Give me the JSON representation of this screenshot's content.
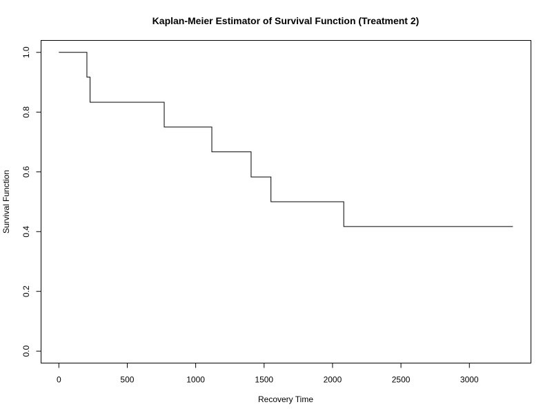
{
  "chart_data": {
    "type": "line",
    "title": "Kaplan-Meier Estimator of Survival Function (Treatment 2)",
    "xlabel": "Recovery Time",
    "ylabel": "Survival Function",
    "xlim": [
      -130,
      3450
    ],
    "ylim": [
      -0.04,
      1.04
    ],
    "x_axis_range": [
      0,
      3000
    ],
    "y_axis_range": [
      0.0,
      1.0
    ],
    "x_ticks": [
      0,
      500,
      1000,
      1500,
      2000,
      2500,
      3000
    ],
    "x_tick_labels": [
      "0",
      "500",
      "1000",
      "1500",
      "2000",
      "2500",
      "3000"
    ],
    "y_ticks": [
      0.0,
      0.2,
      0.4,
      0.6,
      0.8,
      1.0
    ],
    "y_tick_labels": [
      "0.0",
      "0.2",
      "0.4",
      "0.6",
      "0.8",
      "1.0"
    ],
    "grid": false,
    "step": true,
    "series": [
      {
        "color": "#000000",
        "x": [
          0,
          205,
          228,
          770,
          1118,
          1405,
          1550,
          2082,
          3318
        ],
        "y": [
          1.0,
          0.917,
          0.833,
          0.75,
          0.667,
          0.583,
          0.5,
          0.417,
          0.417
        ]
      }
    ]
  }
}
